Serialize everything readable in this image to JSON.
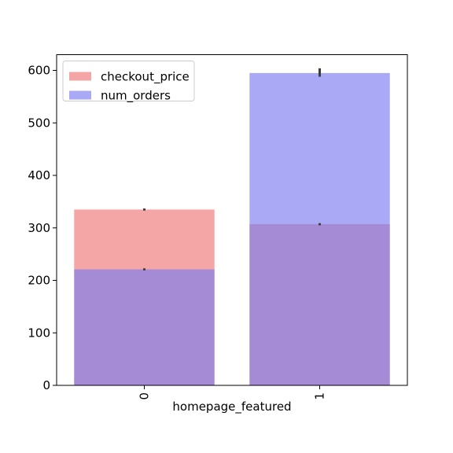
{
  "chart_data": {
    "type": "bar",
    "overlaid": true,
    "categories": [
      "0",
      "1"
    ],
    "xlabel": "homepage_featured",
    "ylabel": "",
    "ylim": [
      0,
      630
    ],
    "yticks": [
      0,
      100,
      200,
      300,
      400,
      500,
      600
    ],
    "series": [
      {
        "name": "checkout_price",
        "color": "#f08080",
        "alpha": 0.7,
        "values": [
          335,
          307
        ],
        "errors": [
          [
            333,
            337
          ],
          [
            305,
            309
          ]
        ]
      },
      {
        "name": "num_orders",
        "color": "#7b7bef",
        "alpha": 0.65,
        "values": [
          221,
          595
        ],
        "errors": [
          [
            219,
            223
          ],
          [
            588,
            604
          ]
        ]
      }
    ],
    "legend": {
      "placement": "upper-left"
    },
    "grid": false
  }
}
